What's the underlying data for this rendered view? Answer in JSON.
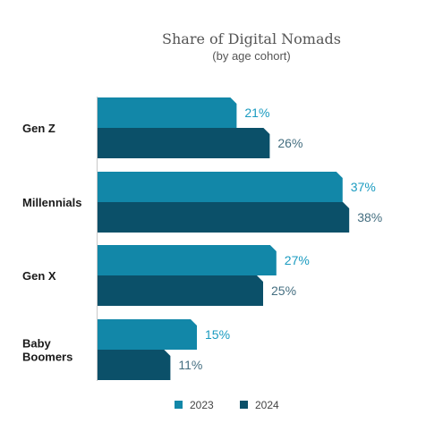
{
  "chart_data": {
    "type": "bar",
    "orientation": "horizontal",
    "title": "Share of Digital Nomads",
    "subtitle": "(by age cohort)",
    "categories": [
      [
        "Gen Z"
      ],
      [
        "Millennials"
      ],
      [
        "Gen X"
      ],
      [
        "Baby",
        "Boomers"
      ]
    ],
    "series": [
      {
        "name": "2023",
        "color": "#1287a8",
        "values": [
          21,
          37,
          27,
          15
        ],
        "labels": [
          "21%",
          "37%",
          "27%",
          "15%"
        ]
      },
      {
        "name": "2024",
        "color": "#0b5069",
        "values": [
          26,
          38,
          25,
          11
        ],
        "labels": [
          "26%",
          "38%",
          "25%",
          "11%"
        ]
      }
    ],
    "xlim": [
      0,
      40
    ],
    "unit": "%",
    "grid": false,
    "legend_position": "bottom-center"
  }
}
